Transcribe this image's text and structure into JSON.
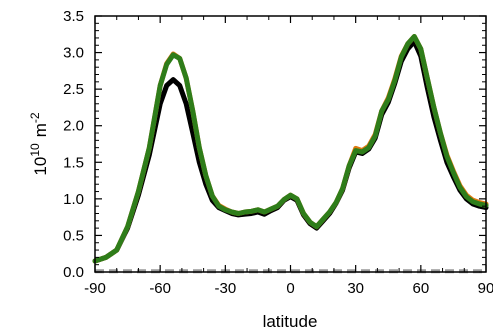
{
  "chart_data": {
    "type": "line",
    "xlabel": "latitude",
    "ylabel": "10",
    "ylabel_exponent": "10",
    "ylabel_unit": "m",
    "ylabel_unit_exponent": "-2",
    "xlim": [
      -90,
      90
    ],
    "ylim": [
      0,
      3.5
    ],
    "xticks": [
      -90,
      -60,
      -30,
      0,
      30,
      60,
      90
    ],
    "xtick_labels": [
      "-90",
      "-60",
      "-30",
      "0",
      "30",
      "60",
      "90"
    ],
    "yticks": [
      0,
      0.5,
      1.0,
      1.5,
      2.0,
      2.5,
      3.0,
      3.5
    ],
    "ytick_labels": [
      "0.0",
      "0.5",
      "1.0",
      "1.5",
      "2.0",
      "2.5",
      "3.0",
      "3.5"
    ],
    "grid": false,
    "legend": "none",
    "x": [
      -90,
      -85,
      -80,
      -75,
      -70,
      -65,
      -60,
      -57,
      -54,
      -51,
      -48,
      -45,
      -42,
      -39,
      -36,
      -33,
      -30,
      -27,
      -24,
      -21,
      -18,
      -15,
      -12,
      -9,
      -6,
      -3,
      0,
      3,
      6,
      9,
      12,
      15,
      18,
      21,
      24,
      27,
      30,
      33,
      36,
      39,
      42,
      45,
      48,
      51,
      54,
      57,
      60,
      63,
      66,
      69,
      72,
      75,
      78,
      81,
      84,
      87,
      90
    ],
    "series": [
      {
        "color": "#000000",
        "values": [
          0.15,
          0.2,
          0.3,
          0.6,
          1.05,
          1.6,
          2.3,
          2.55,
          2.63,
          2.55,
          2.3,
          1.9,
          1.5,
          1.2,
          0.98,
          0.88,
          0.84,
          0.8,
          0.78,
          0.79,
          0.8,
          0.82,
          0.79,
          0.84,
          0.88,
          0.98,
          1.03,
          0.98,
          0.78,
          0.66,
          0.6,
          0.7,
          0.8,
          0.94,
          1.12,
          1.42,
          1.64,
          1.62,
          1.68,
          1.83,
          2.15,
          2.32,
          2.58,
          2.88,
          3.05,
          3.15,
          2.95,
          2.52,
          2.12,
          1.8,
          1.5,
          1.3,
          1.12,
          1.0,
          0.93,
          0.9,
          0.88
        ]
      },
      {
        "color": "#e07a10",
        "values": [
          0.15,
          0.2,
          0.3,
          0.62,
          1.1,
          1.7,
          2.55,
          2.85,
          2.98,
          2.92,
          2.65,
          2.2,
          1.7,
          1.32,
          1.04,
          0.91,
          0.86,
          0.82,
          0.8,
          0.82,
          0.83,
          0.85,
          0.82,
          0.86,
          0.9,
          0.99,
          1.05,
          1.0,
          0.8,
          0.68,
          0.62,
          0.72,
          0.82,
          0.95,
          1.14,
          1.45,
          1.69,
          1.66,
          1.72,
          1.88,
          2.2,
          2.38,
          2.64,
          2.95,
          3.12,
          3.22,
          3.05,
          2.65,
          2.25,
          1.9,
          1.6,
          1.38,
          1.18,
          1.05,
          0.98,
          0.95,
          0.93
        ]
      },
      {
        "color": "#2e7d1a",
        "values": [
          0.15,
          0.2,
          0.3,
          0.62,
          1.1,
          1.7,
          2.55,
          2.84,
          2.97,
          2.92,
          2.65,
          2.2,
          1.7,
          1.32,
          1.04,
          0.9,
          0.85,
          0.82,
          0.8,
          0.82,
          0.83,
          0.85,
          0.82,
          0.86,
          0.9,
          0.99,
          1.05,
          1.0,
          0.8,
          0.68,
          0.62,
          0.72,
          0.82,
          0.95,
          1.14,
          1.45,
          1.66,
          1.64,
          1.7,
          1.86,
          2.2,
          2.36,
          2.62,
          2.94,
          3.12,
          3.22,
          3.05,
          2.65,
          2.25,
          1.9,
          1.58,
          1.36,
          1.16,
          1.03,
          0.96,
          0.93,
          0.91
        ]
      },
      {
        "color": "#999999",
        "dashed": true,
        "values": [
          0.01,
          0.01,
          0.01,
          0.01,
          0.01,
          0.01,
          0.01,
          0.01,
          0.01,
          0.01,
          0.01,
          0.01,
          0.01,
          0.01,
          0.01,
          0.01,
          0.01,
          0.01,
          0.01,
          0.01,
          0.01,
          0.01,
          0.01,
          0.01,
          0.01,
          0.01,
          0.01,
          0.01,
          0.01,
          0.01,
          0.01,
          0.01,
          0.01,
          0.01,
          0.01,
          0.01,
          0.01,
          0.01,
          0.01,
          0.01,
          0.01,
          0.01,
          0.01,
          0.01,
          0.01,
          0.01,
          0.01,
          0.01,
          0.01,
          0.01,
          0.01,
          0.01,
          0.01,
          0.01,
          0.01,
          0.01,
          0.01
        ]
      }
    ]
  }
}
